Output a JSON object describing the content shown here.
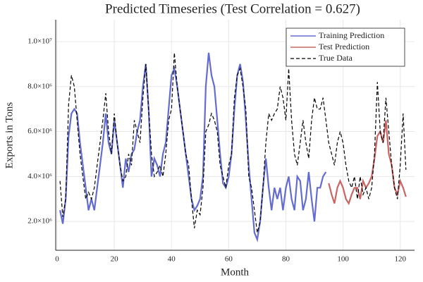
{
  "chart_data": {
    "type": "line",
    "title": "Predicted Timeseries (Test Correlation = 0.627)",
    "x_label": "Month",
    "y_label": "Exports in Tons",
    "x": [
      1,
      2,
      3,
      4,
      5,
      6,
      7,
      8,
      9,
      10,
      11,
      12,
      13,
      14,
      15,
      16,
      17,
      18,
      19,
      20,
      21,
      22,
      23,
      24,
      25,
      26,
      27,
      28,
      29,
      30,
      31,
      32,
      33,
      34,
      35,
      36,
      37,
      38,
      39,
      40,
      41,
      42,
      43,
      44,
      45,
      46,
      47,
      48,
      49,
      50,
      51,
      52,
      53,
      54,
      55,
      56,
      57,
      58,
      59,
      60,
      61,
      62,
      63,
      64,
      65,
      66,
      67,
      68,
      69,
      70,
      71,
      72,
      73,
      74,
      75,
      76,
      77,
      78,
      79,
      80,
      81,
      82,
      83,
      84,
      85,
      86,
      87,
      88,
      89,
      90,
      91,
      92,
      93,
      94,
      95,
      96,
      97,
      98,
      99,
      100,
      101,
      102,
      103,
      104,
      105,
      106,
      107,
      108,
      109,
      110,
      111,
      112,
      113,
      114,
      115,
      116,
      117,
      118,
      119,
      120,
      121,
      122
    ],
    "series": [
      {
        "name": "Training Prediction",
        "color": "#4a52c9",
        "line_style": "solid",
        "values": [
          2500000.0,
          1900000.0,
          3000000.0,
          5800000.0,
          6800000.0,
          7000000.0,
          6800000.0,
          5500000.0,
          4500000.0,
          3500000.0,
          2500000.0,
          3000000.0,
          2500000.0,
          3500000.0,
          4500000.0,
          5500000.0,
          6800000.0,
          5500000.0,
          5000000.0,
          6500000.0,
          5500000.0,
          4500000.0,
          3500000.0,
          4800000.0,
          4200000.0,
          5000000.0,
          5200000.0,
          6000000.0,
          6500000.0,
          8000000.0,
          9000000.0,
          7000000.0,
          4000000.0,
          4800000.0,
          4500000.0,
          4000000.0,
          5000000.0,
          5500000.0,
          7000000.0,
          8500000.0,
          8800000.0,
          8000000.0,
          7000000.0,
          6000000.0,
          5000000.0,
          4000000.0,
          3000000.0,
          2500000.0,
          2700000.0,
          3000000.0,
          4000000.0,
          8000000.0,
          9500000.0,
          8500000.0,
          8000000.0,
          6500000.0,
          5000000.0,
          3700000.0,
          3500000.0,
          4000000.0,
          5000000.0,
          7000000.0,
          8500000.0,
          9000000.0,
          8200000.0,
          6500000.0,
          4500000.0,
          3000000.0,
          1500000.0,
          1200000.0,
          2000000.0,
          3500000.0,
          4800000.0,
          3500000.0,
          2500000.0,
          3500000.0,
          3000000.0,
          3500000.0,
          2500000.0,
          3500000.0,
          4000000.0,
          3000000.0,
          2500000.0,
          4000000.0,
          3800000.0,
          2500000.0,
          3000000.0,
          4200000.0,
          3000000.0,
          2000000.0,
          3500000.0,
          3500000.0,
          4000000.0,
          4200000.0,
          null,
          null,
          null,
          null,
          null,
          null,
          null,
          null,
          null,
          null,
          null,
          null,
          null,
          null,
          null,
          null,
          null,
          null,
          null,
          null,
          null,
          null,
          null,
          null,
          null,
          null,
          null,
          null
        ]
      },
      {
        "name": "Test Prediction",
        "color": "#c24a4a",
        "line_style": "solid",
        "values": [
          null,
          null,
          null,
          null,
          null,
          null,
          null,
          null,
          null,
          null,
          null,
          null,
          null,
          null,
          null,
          null,
          null,
          null,
          null,
          null,
          null,
          null,
          null,
          null,
          null,
          null,
          null,
          null,
          null,
          null,
          null,
          null,
          null,
          null,
          null,
          null,
          null,
          null,
          null,
          null,
          null,
          null,
          null,
          null,
          null,
          null,
          null,
          null,
          null,
          null,
          null,
          null,
          null,
          null,
          null,
          null,
          null,
          null,
          null,
          null,
          null,
          null,
          null,
          null,
          null,
          null,
          null,
          null,
          null,
          null,
          null,
          null,
          null,
          null,
          null,
          null,
          null,
          null,
          null,
          null,
          null,
          null,
          null,
          null,
          null,
          null,
          null,
          null,
          null,
          null,
          null,
          null,
          null,
          null,
          3700000.0,
          3200000.0,
          2800000.0,
          3500000.0,
          3800000.0,
          3500000.0,
          3000000.0,
          2800000.0,
          3200000.0,
          3500000.0,
          3500000.0,
          3000000.0,
          3800000.0,
          3500000.0,
          3700000.0,
          4000000.0,
          4800000.0,
          5800000.0,
          6000000.0,
          5500000.0,
          6500000.0,
          5000000.0,
          4500000.0,
          3500000.0,
          3200000.0,
          3800000.0,
          3500000.0,
          3100000.0
        ]
      },
      {
        "name": "True Data",
        "color": "#000000",
        "line_style": "dashed",
        "values": [
          3800000.0,
          2200000.0,
          3000000.0,
          7200000.0,
          8500000.0,
          8000000.0,
          6500000.0,
          5000000.0,
          4000000.0,
          3000000.0,
          3300000.0,
          3000000.0,
          3500000.0,
          4500000.0,
          5500000.0,
          6500000.0,
          7700000.0,
          6000000.0,
          5000000.0,
          6800000.0,
          5500000.0,
          4500000.0,
          3800000.0,
          4000000.0,
          5000000.0,
          4500000.0,
          6500000.0,
          6000000.0,
          5500000.0,
          7500000.0,
          9000000.0,
          7000000.0,
          5000000.0,
          4000000.0,
          4200000.0,
          4500000.0,
          4000000.0,
          5000000.0,
          6500000.0,
          7000000.0,
          9500000.0,
          8000000.0,
          7000000.0,
          6000000.0,
          5000000.0,
          4500000.0,
          3000000.0,
          1700000.0,
          2500000.0,
          2300000.0,
          3500000.0,
          6000000.0,
          6300000.0,
          6800000.0,
          6500000.0,
          6000000.0,
          4500000.0,
          4000000.0,
          3500000.0,
          4500000.0,
          5000000.0,
          7500000.0,
          8500000.0,
          8800000.0,
          8000000.0,
          7000000.0,
          4000000.0,
          3500000.0,
          2500000.0,
          1500000.0,
          2000000.0,
          3500000.0,
          5500000.0,
          6800000.0,
          6500000.0,
          6800000.0,
          7000000.0,
          8000000.0,
          7500000.0,
          6500000.0,
          8800000.0,
          6500000.0,
          5000000.0,
          4500000.0,
          5500000.0,
          6500000.0,
          5500000.0,
          4800000.0,
          6500000.0,
          7500000.0,
          7000000.0,
          7000000.0,
          7500000.0,
          6500000.0,
          5500000.0,
          5000000.0,
          4500000.0,
          5500000.0,
          6000000.0,
          5500000.0,
          4500000.0,
          3800000.0,
          3500000.0,
          4000000.0,
          3000000.0,
          4000000.0,
          3200000.0,
          3500000.0,
          3000000.0,
          3500000.0,
          5000000.0,
          8200000.0,
          6000000.0,
          5500000.0,
          7500000.0,
          6000000.0,
          4500000.0,
          3500000.0,
          3000000.0,
          4500000.0,
          6800000.0,
          4300000.0
        ]
      }
    ],
    "xlim": [
      -0.5,
      125
    ],
    "xticks": [
      0,
      20,
      40,
      60,
      80,
      100,
      120
    ],
    "ylim": [
      720000,
      10970000
    ],
    "yticks": [
      {
        "value": 2000000,
        "label": "2.0×10⁶"
      },
      {
        "value": 4000000,
        "label": "4.0×10⁶"
      },
      {
        "value": 6000000,
        "label": "6.0×10⁶"
      },
      {
        "value": 8000000,
        "label": "8.0×10⁶"
      },
      {
        "value": 10000000,
        "label": "1.0×10⁷"
      }
    ],
    "grid": true,
    "legend": "upper right"
  }
}
